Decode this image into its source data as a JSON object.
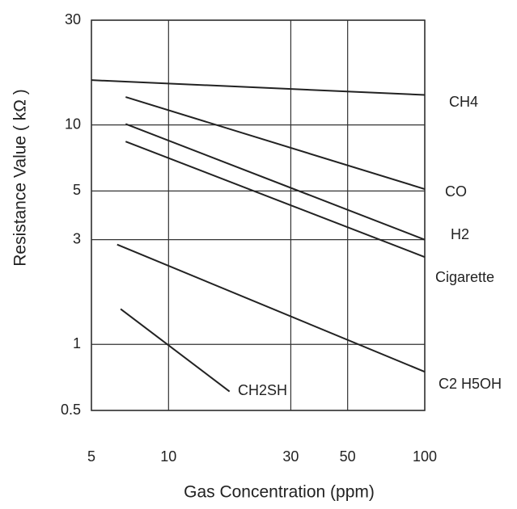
{
  "chart_data": {
    "type": "line",
    "x_label": "Gas Concentration (ppm)",
    "y_label": "Resistance Value ( kΩ )",
    "log_x": true,
    "log_y": true,
    "grid": true,
    "xlim": [
      5,
      100
    ],
    "xticks": [
      5,
      10,
      30,
      50,
      100
    ],
    "ylim": [
      0.5,
      30
    ],
    "yticks": [
      30,
      10,
      5,
      3,
      1,
      0.5
    ],
    "series": [
      {
        "name": "CH4",
        "color": "#222222",
        "x": [
          5,
          100
        ],
        "values": [
          16,
          13.7
        ]
      },
      {
        "name": "CO",
        "color": "#222222",
        "x": [
          6.8,
          100
        ],
        "values": [
          13.4,
          5.1
        ]
      },
      {
        "name": "H2",
        "color": "#222222",
        "x": [
          6.8,
          100
        ],
        "values": [
          10.1,
          3.0
        ]
      },
      {
        "name": "Cigarette",
        "color": "#222222",
        "x": [
          6.8,
          100
        ],
        "values": [
          8.4,
          2.5
        ]
      },
      {
        "name": "C2 H5OH",
        "color": "#222222",
        "x": [
          6.3,
          100
        ],
        "values": [
          2.85,
          0.75
        ]
      },
      {
        "name": "CH2SH",
        "color": "#222222",
        "x": [
          6.5,
          17.3
        ],
        "values": [
          1.45,
          0.61
        ]
      }
    ]
  }
}
